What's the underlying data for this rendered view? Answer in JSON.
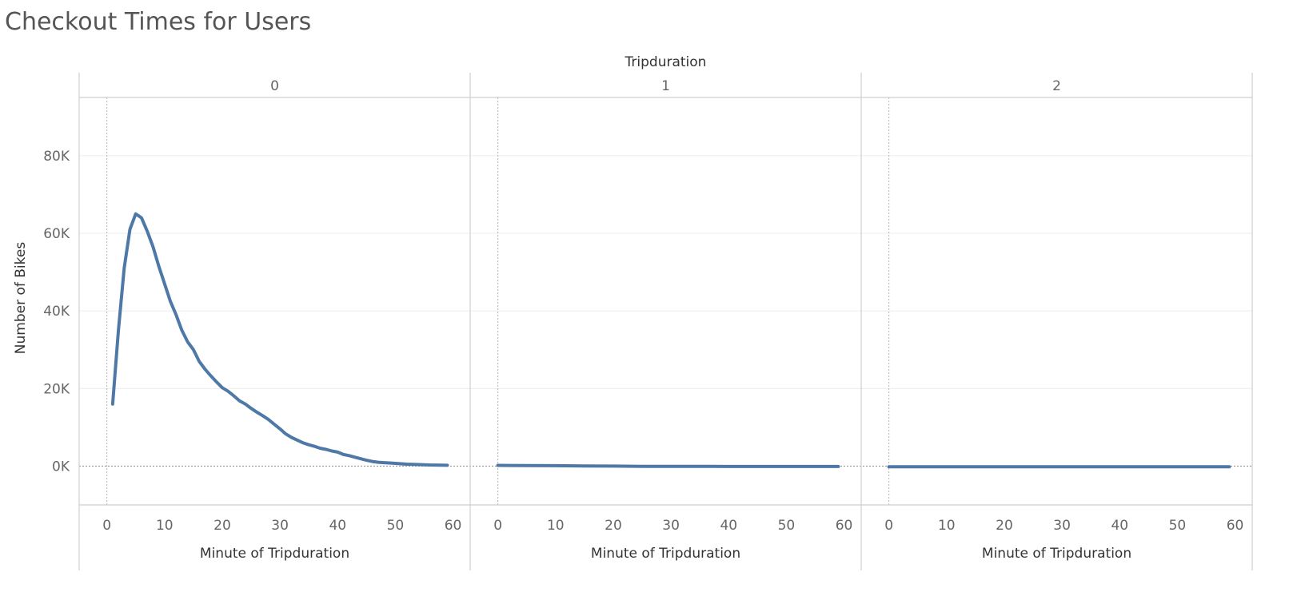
{
  "title": "Checkout Times for Users",
  "chart_data": {
    "type": "line",
    "title": "Checkout Times for Users",
    "facet_title": "Tripduration",
    "facets": [
      "0",
      "1",
      "2"
    ],
    "xlabel": "Minute of Tripduration",
    "ylabel": "Number of Bikes",
    "xlim": [
      -3,
      62
    ],
    "ylim": [
      -10000,
      95000
    ],
    "x_ticks": [
      0,
      10,
      20,
      30,
      40,
      50,
      60
    ],
    "y_ticks": [
      0,
      20000,
      40000,
      60000,
      80000
    ],
    "y_tick_labels": [
      "0K",
      "20K",
      "40K",
      "60K",
      "80K"
    ],
    "grid": true,
    "line_color": "#4e79a7",
    "series": [
      {
        "facet": "0",
        "x": [
          1,
          2,
          3,
          4,
          5,
          6,
          7,
          8,
          9,
          10,
          11,
          12,
          13,
          14,
          15,
          16,
          17,
          18,
          19,
          20,
          21,
          22,
          23,
          24,
          25,
          26,
          27,
          28,
          29,
          30,
          31,
          32,
          33,
          34,
          35,
          36,
          37,
          38,
          39,
          40,
          41,
          42,
          43,
          44,
          45,
          46,
          47,
          48,
          49,
          50,
          51,
          52,
          53,
          54,
          55,
          56,
          57,
          58,
          59
        ],
        "values": [
          16000,
          35000,
          51000,
          61000,
          65000,
          64000,
          60500,
          56500,
          51500,
          47000,
          42500,
          39000,
          35000,
          32000,
          30000,
          27000,
          25000,
          23300,
          21700,
          20200,
          19300,
          18100,
          16800,
          16000,
          14900,
          13900,
          13000,
          12000,
          10800,
          9600,
          8300,
          7400,
          6700,
          6000,
          5500,
          5100,
          4600,
          4300,
          3900,
          3600,
          3000,
          2700,
          2300,
          1900,
          1500,
          1200,
          1000,
          900,
          800,
          700,
          600,
          500,
          450,
          400,
          350,
          300,
          270,
          240,
          220
        ]
      },
      {
        "facet": "1",
        "x": [
          0,
          5,
          10,
          15,
          20,
          25,
          30,
          35,
          40,
          45,
          50,
          55,
          59
        ],
        "values": [
          200,
          150,
          100,
          50,
          0,
          -50,
          -50,
          -50,
          -100,
          -100,
          -100,
          -100,
          -100
        ]
      },
      {
        "facet": "2",
        "x": [
          0,
          5,
          10,
          15,
          20,
          25,
          30,
          35,
          40,
          45,
          50,
          55,
          59
        ],
        "values": [
          -150,
          -150,
          -150,
          -150,
          -150,
          -150,
          -150,
          -150,
          -150,
          -150,
          -150,
          -150,
          -150
        ]
      }
    ]
  }
}
